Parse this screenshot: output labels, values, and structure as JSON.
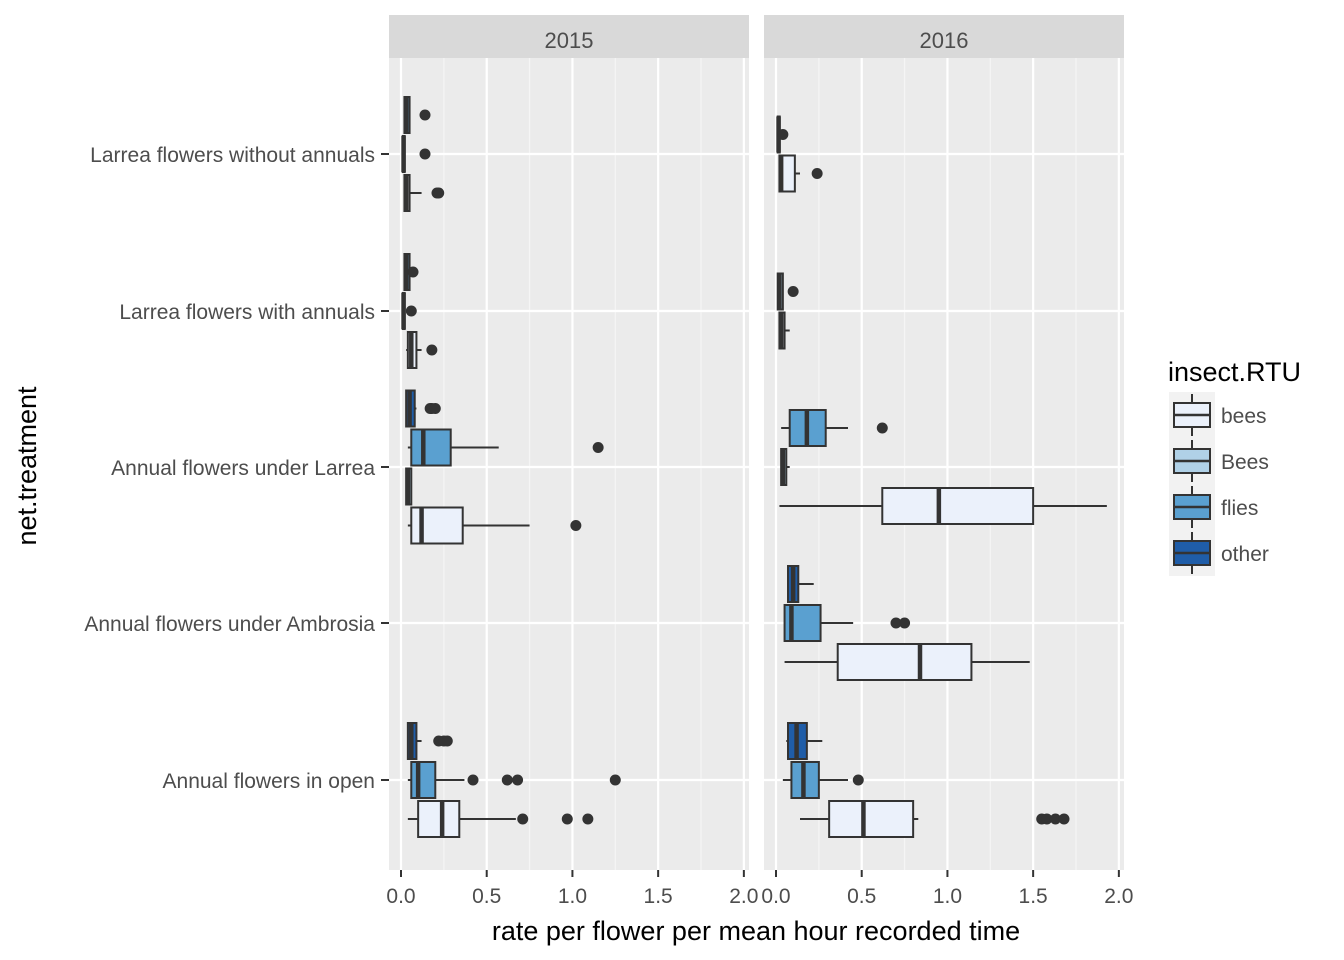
{
  "chart_data": {
    "type": "boxplot",
    "orientation": "horizontal",
    "facets": [
      "2015",
      "2016"
    ],
    "xlabel": "rate per flower per mean hour recorded time",
    "ylabel": "net.treatment",
    "xlim": [
      -0.07,
      2.03
    ],
    "x_ticks": [
      "0.0",
      "0.5",
      "1.0",
      "1.5",
      "2.0"
    ],
    "x_tick_values": [
      0,
      0.5,
      1.0,
      1.5,
      2.0
    ],
    "categories": [
      "Larrea flowers without annuals",
      "Larrea flowers with annuals",
      "Annual flowers under Larrea",
      "Annual flowers under Ambrosia",
      "Annual flowers in open"
    ],
    "grid": true,
    "legend": {
      "title": "insect.RTU",
      "position": "right",
      "entries": [
        {
          "label": "bees",
          "color": "#EBF1FB"
        },
        {
          "label": "Bees",
          "color": "#B0D1E7"
        },
        {
          "label": "flies",
          "color": "#5AA0D0"
        },
        {
          "label": "other",
          "color": "#1F5DA8"
        }
      ]
    },
    "series": [
      {
        "facet": "2015",
        "category": "Larrea flowers without annuals",
        "group": "Bees",
        "min": 0.01,
        "q1": 0.01,
        "median": 0.015,
        "q3": 0.02,
        "max": 0.02,
        "outliers": [
          0.14
        ]
      },
      {
        "facet": "2015",
        "category": "Larrea flowers without annuals",
        "group": "flies",
        "min": 0.02,
        "q1": 0.02,
        "median": 0.03,
        "q3": 0.05,
        "max": 0.05,
        "outliers": [
          0.14
        ]
      },
      {
        "facet": "2015",
        "category": "Larrea flowers without annuals",
        "group": "bees",
        "min": 0.02,
        "q1": 0.02,
        "median": 0.03,
        "q3": 0.05,
        "max": 0.12,
        "outliers": [
          0.21,
          0.22
        ]
      },
      {
        "facet": "2015",
        "category": "Larrea flowers with annuals",
        "group": "Bees",
        "min": 0.01,
        "q1": 0.01,
        "median": 0.015,
        "q3": 0.02,
        "max": 0.02,
        "outliers": [
          0.06
        ]
      },
      {
        "facet": "2015",
        "category": "Larrea flowers with annuals",
        "group": "flies",
        "min": 0.02,
        "q1": 0.02,
        "median": 0.03,
        "q3": 0.05,
        "max": 0.05,
        "outliers": [
          0.07
        ]
      },
      {
        "facet": "2015",
        "category": "Larrea flowers with annuals",
        "group": "bees",
        "min": 0.03,
        "q1": 0.04,
        "median": 0.06,
        "q3": 0.09,
        "max": 0.12,
        "outliers": [
          0.18
        ]
      },
      {
        "facet": "2015",
        "category": "Annual flowers under Larrea",
        "group": "other",
        "min": 0.03,
        "q1": 0.03,
        "median": 0.05,
        "q3": 0.08,
        "max": 0.09,
        "outliers": [
          0.17,
          0.18,
          0.2
        ]
      },
      {
        "facet": "2015",
        "category": "Annual flowers under Larrea",
        "group": "flies",
        "min": 0.04,
        "q1": 0.06,
        "median": 0.13,
        "q3": 0.29,
        "max": 0.57,
        "outliers": [
          1.15
        ]
      },
      {
        "facet": "2015",
        "category": "Annual flowers under Larrea",
        "group": "Bees",
        "min": 0.03,
        "q1": 0.03,
        "median": 0.04,
        "q3": 0.06,
        "max": 0.06,
        "outliers": []
      },
      {
        "facet": "2015",
        "category": "Annual flowers under Larrea",
        "group": "bees",
        "min": 0.04,
        "q1": 0.06,
        "median": 0.12,
        "q3": 0.36,
        "max": 0.75,
        "outliers": [
          1.02
        ]
      },
      {
        "facet": "2015",
        "category": "Annual flowers in open",
        "group": "other",
        "min": 0.04,
        "q1": 0.04,
        "median": 0.06,
        "q3": 0.09,
        "max": 0.12,
        "outliers": [
          0.22,
          0.25,
          0.27
        ]
      },
      {
        "facet": "2015",
        "category": "Annual flowers in open",
        "group": "flies",
        "min": 0.04,
        "q1": 0.06,
        "median": 0.1,
        "q3": 0.2,
        "max": 0.37,
        "outliers": [
          0.42,
          0.62,
          0.68,
          1.25
        ]
      },
      {
        "facet": "2015",
        "category": "Annual flowers in open",
        "group": "bees",
        "min": 0.04,
        "q1": 0.1,
        "median": 0.24,
        "q3": 0.34,
        "max": 0.67,
        "outliers": [
          0.71,
          0.97,
          1.09
        ]
      },
      {
        "facet": "2016",
        "category": "Larrea flowers without annuals",
        "group": "Bees",
        "min": 0.01,
        "q1": 0.01,
        "median": 0.015,
        "q3": 0.02,
        "max": 0.02,
        "outliers": [
          0.04
        ]
      },
      {
        "facet": "2016",
        "category": "Larrea flowers without annuals",
        "group": "bees",
        "min": 0.02,
        "q1": 0.02,
        "median": 0.03,
        "q3": 0.11,
        "max": 0.14,
        "outliers": [
          0.24
        ]
      },
      {
        "facet": "2016",
        "category": "Larrea flowers with annuals",
        "group": "Bees",
        "min": 0.01,
        "q1": 0.01,
        "median": 0.02,
        "q3": 0.04,
        "max": 0.04,
        "outliers": [
          0.1
        ]
      },
      {
        "facet": "2016",
        "category": "Larrea flowers with annuals",
        "group": "bees",
        "min": 0.02,
        "q1": 0.02,
        "median": 0.03,
        "q3": 0.05,
        "max": 0.08,
        "outliers": []
      },
      {
        "facet": "2016",
        "category": "Annual flowers under Larrea",
        "group": "Bees",
        "min": 0.03,
        "q1": 0.03,
        "median": 0.04,
        "q3": 0.06,
        "max": 0.08,
        "outliers": []
      },
      {
        "facet": "2016",
        "category": "Annual flowers under Larrea",
        "group": "flies",
        "min": 0.03,
        "q1": 0.08,
        "median": 0.18,
        "q3": 0.29,
        "max": 0.42,
        "outliers": [
          0.62
        ]
      },
      {
        "facet": "2016",
        "category": "Annual flowers under Larrea",
        "group": "bees",
        "min": 0.02,
        "q1": 0.62,
        "median": 0.95,
        "q3": 1.5,
        "max": 1.93,
        "outliers": []
      },
      {
        "facet": "2016",
        "category": "Annual flowers under Ambrosia",
        "group": "other",
        "min": 0.07,
        "q1": 0.07,
        "median": 0.1,
        "q3": 0.13,
        "max": 0.22,
        "outliers": []
      },
      {
        "facet": "2016",
        "category": "Annual flowers under Ambrosia",
        "group": "flies",
        "min": 0.05,
        "q1": 0.05,
        "median": 0.09,
        "q3": 0.26,
        "max": 0.45,
        "outliers": [
          0.7,
          0.75
        ]
      },
      {
        "facet": "2016",
        "category": "Annual flowers under Ambrosia",
        "group": "bees",
        "min": 0.05,
        "q1": 0.36,
        "median": 0.84,
        "q3": 1.14,
        "max": 1.48,
        "outliers": []
      },
      {
        "facet": "2016",
        "category": "Annual flowers in open",
        "group": "other",
        "min": 0.06,
        "q1": 0.07,
        "median": 0.12,
        "q3": 0.18,
        "max": 0.27,
        "outliers": []
      },
      {
        "facet": "2016",
        "category": "Annual flowers in open",
        "group": "flies",
        "min": 0.04,
        "q1": 0.09,
        "median": 0.16,
        "q3": 0.25,
        "max": 0.42,
        "outliers": [
          0.48
        ]
      },
      {
        "facet": "2016",
        "category": "Annual flowers in open",
        "group": "bees",
        "min": 0.14,
        "q1": 0.31,
        "median": 0.51,
        "q3": 0.8,
        "max": 0.83,
        "outliers": [
          1.55,
          1.58,
          1.63,
          1.68
        ]
      }
    ]
  }
}
